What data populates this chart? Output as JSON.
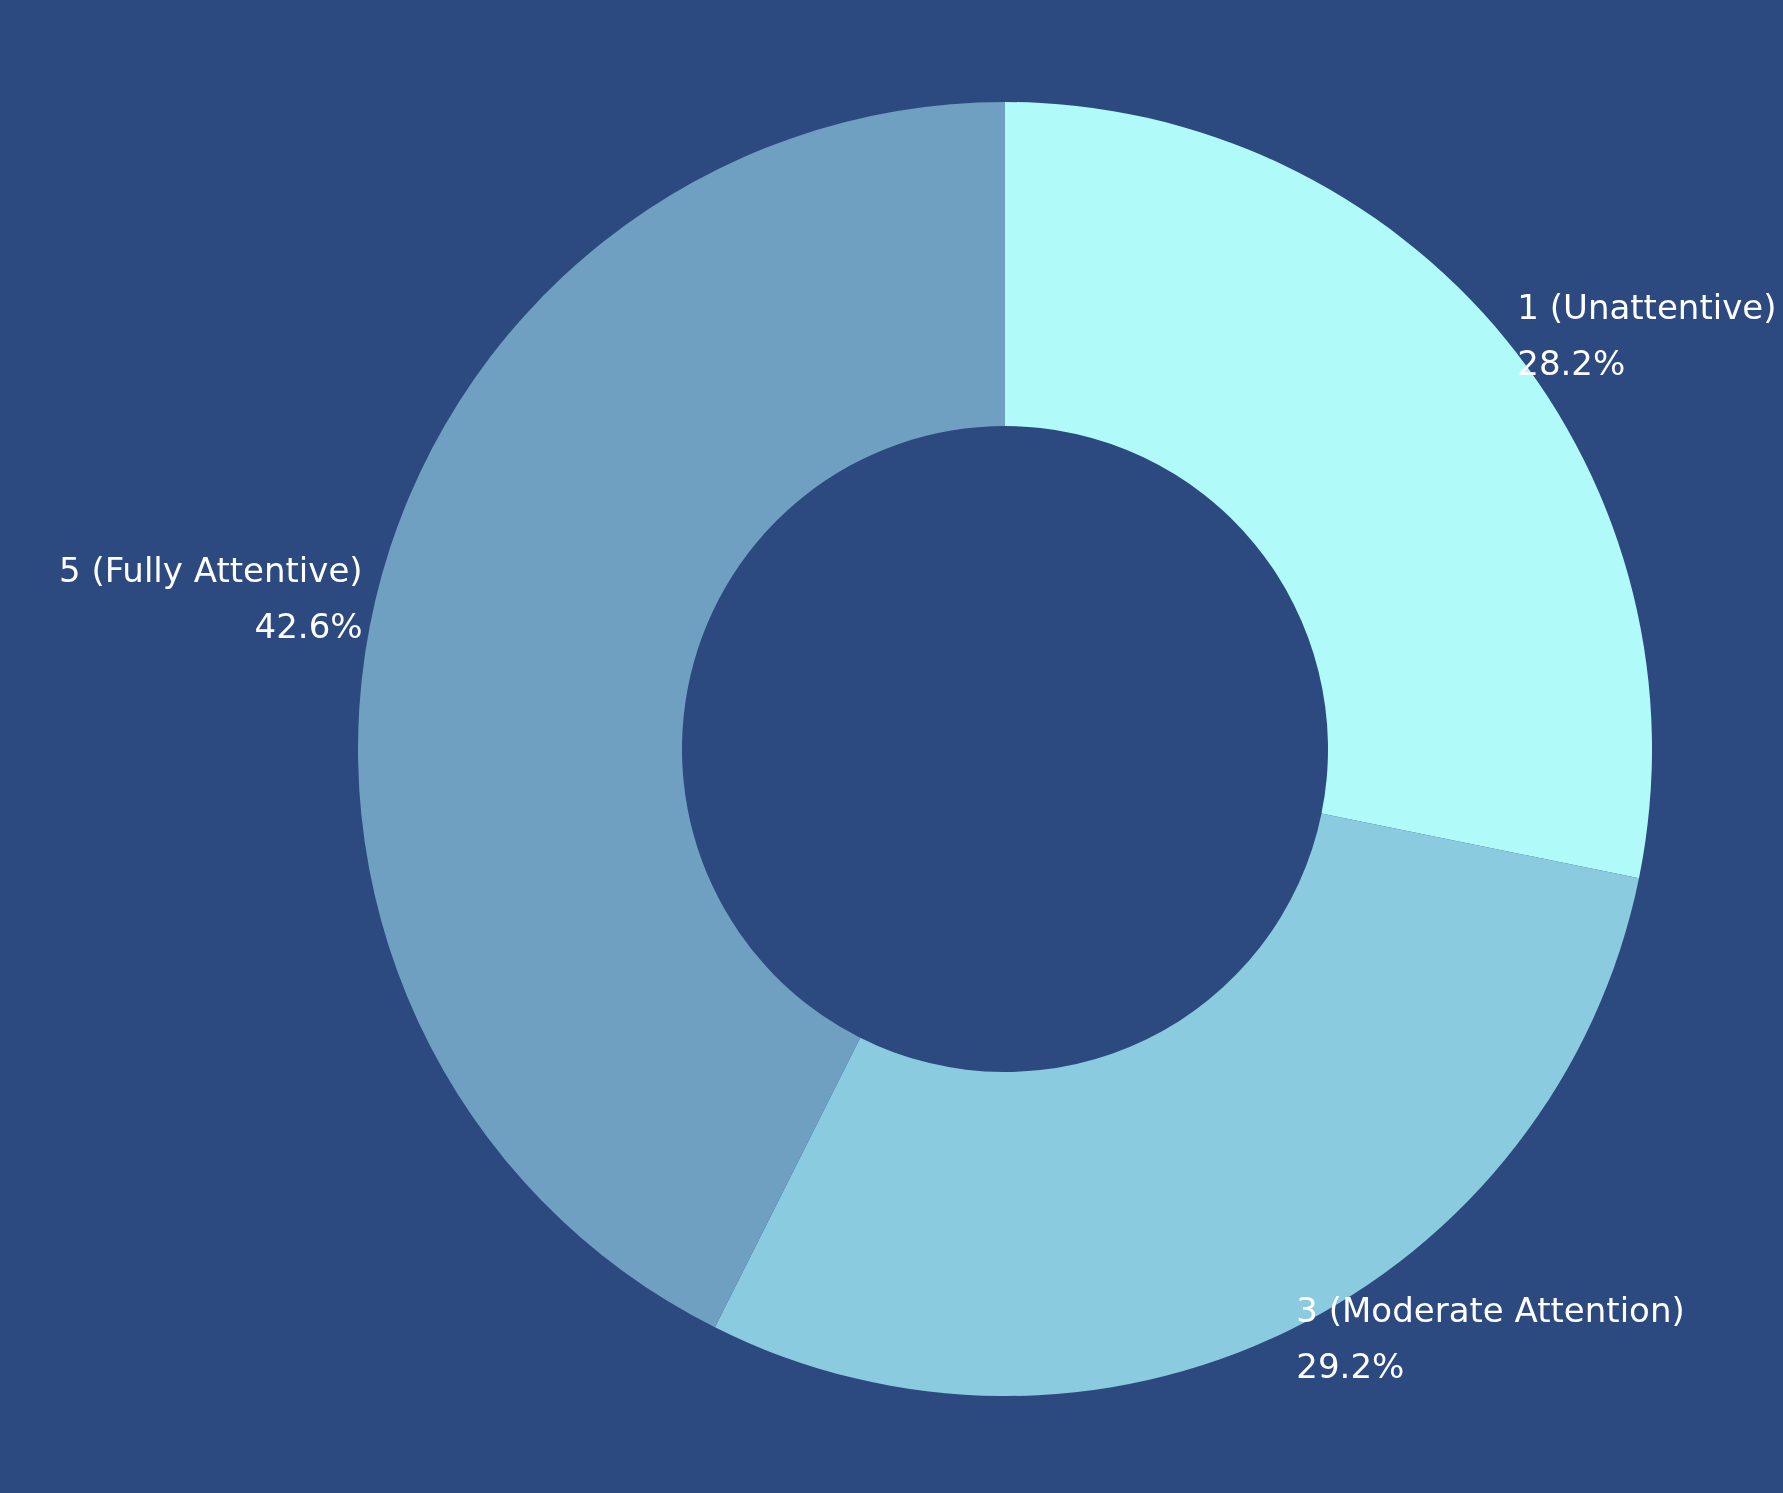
{
  "chart_data": {
    "type": "donut",
    "categories": [
      "1 (Unattentive)",
      "3 (Moderate Attention)",
      "5 (Fully Attentive)"
    ],
    "values": [
      28.2,
      29.2,
      42.6
    ],
    "colors": [
      "#b0fafa",
      "#8acbdf",
      "#6fa0c2"
    ],
    "value_labels": [
      "28.2%",
      "29.2%",
      "42.6%"
    ],
    "legend": false
  }
}
